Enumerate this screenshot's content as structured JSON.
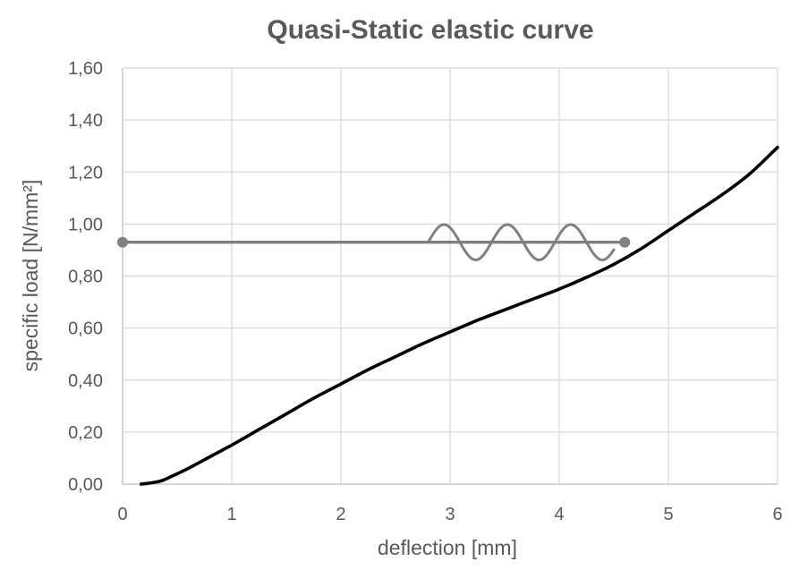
{
  "chart_data": {
    "type": "line",
    "title": "Quasi-Static elastic curve",
    "xlabel": "deflection [mm]",
    "ylabel": "specific load [N/mm²]",
    "xlim": [
      0,
      6
    ],
    "ylim": [
      0,
      1.6
    ],
    "x_ticks": [
      "0",
      "1",
      "2",
      "3",
      "4",
      "5",
      "6"
    ],
    "y_ticks": [
      "0,00",
      "0,20",
      "0,40",
      "0,60",
      "0,80",
      "1,00",
      "1,20",
      "1,40",
      "1,60"
    ],
    "grid": true,
    "legend": "none",
    "series": [
      {
        "color": "#000000",
        "x": [
          0.17,
          0.25,
          0.35,
          0.45,
          0.6,
          0.8,
          1.0,
          1.25,
          1.5,
          1.75,
          2.0,
          2.25,
          2.5,
          2.75,
          3.0,
          3.25,
          3.5,
          3.75,
          4.0,
          4.25,
          4.5,
          4.75,
          5.0,
          5.25,
          5.5,
          5.75,
          6.0
        ],
        "y": [
          0.0,
          0.004,
          0.012,
          0.03,
          0.06,
          0.105,
          0.15,
          0.21,
          0.27,
          0.33,
          0.385,
          0.44,
          0.49,
          0.54,
          0.585,
          0.63,
          0.67,
          0.71,
          0.75,
          0.795,
          0.845,
          0.905,
          0.975,
          1.045,
          1.115,
          1.195,
          1.295
        ]
      },
      {
        "color": "#808080",
        "x": [
          0.0,
          4.6
        ],
        "y": [
          0.93,
          0.93
        ],
        "markers": "endpoints"
      },
      {
        "color": "#808080",
        "type": "sine-annotation",
        "x_start": 2.8,
        "x_end": 4.5,
        "center": 0.93,
        "amplitude": 0.068,
        "period": 0.58
      }
    ]
  }
}
